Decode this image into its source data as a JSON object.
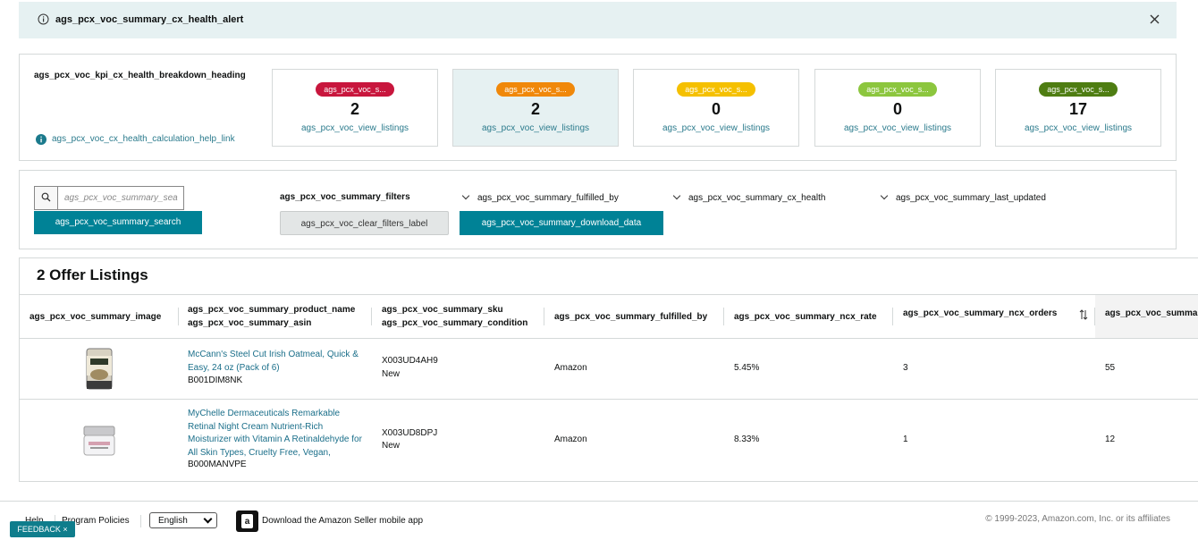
{
  "alert": {
    "message": "ags_pcx_voc_summary_cx_health_alert"
  },
  "kpi": {
    "heading": "ags_pcx_voc_kpi_cx_health_breakdown_heading",
    "help_link": "ags_pcx_voc_cx_health_calculation_help_link",
    "cards": [
      {
        "badge": "ags_pcx_voc_s...",
        "color": "#c8163d",
        "count": 2,
        "link": "ags_pcx_voc_view_listings"
      },
      {
        "badge": "ags_pcx_voc_s...",
        "color": "#f0880a",
        "count": 2,
        "link": "ags_pcx_voc_view_listings"
      },
      {
        "badge": "ags_pcx_voc_s...",
        "color": "#f5c000",
        "count": 0,
        "link": "ags_pcx_voc_view_listings"
      },
      {
        "badge": "ags_pcx_voc_s...",
        "color": "#8cc63e",
        "count": 0,
        "link": "ags_pcx_voc_view_listings"
      },
      {
        "badge": "ags_pcx_voc_s...",
        "color": "#4e7d12",
        "count": 17,
        "link": "ags_pcx_voc_view_listings"
      }
    ]
  },
  "filters": {
    "search_placeholder": "ags_pcx_voc_summary_sea",
    "search_button": "ags_pcx_voc_summary_search",
    "label": "ags_pcx_voc_summary_filters",
    "clear_button": "ags_pcx_voc_clear_filters_label",
    "download_button": "ags_pcx_voc_summary_download_data",
    "dropdowns": [
      "ags_pcx_voc_summary_fulfilled_by",
      "ags_pcx_voc_summary_cx_health",
      "ags_pcx_voc_summary_last_updated"
    ]
  },
  "listings": {
    "title": "2 Offer Listings",
    "columns": [
      [
        "ags_pcx_voc_summary_image"
      ],
      [
        "ags_pcx_voc_summary_product_name",
        "ags_pcx_voc_summary_asin"
      ],
      [
        "ags_pcx_voc_summary_sku",
        "ags_pcx_voc_summary_condition"
      ],
      [
        "ags_pcx_voc_summary_fulfilled_by"
      ],
      [
        "ags_pcx_voc_summary_ncx_rate"
      ],
      [
        "ags_pcx_voc_summary_ncx_orders"
      ],
      [
        "ags_pcx_voc_summa"
      ]
    ],
    "rows": [
      {
        "product_name": "McCann's Steel Cut Irish Oatmeal, Quick & Easy, 24 oz (Pack of 6)",
        "asin": "B001DIM8NK",
        "sku": "X003UD4AH9",
        "condition": "New",
        "fulfilled_by": "Amazon",
        "ncx_rate": "5.45%",
        "ncx_orders": 3,
        "col7": 55
      },
      {
        "product_name": "MyChelle Dermaceuticals Remarkable Retinal Night Cream Nutrient-Rich Moisturizer with Vitamin A Retinaldehyde for All Skin Types, Cruelty Free, Vegan,",
        "asin": "B000MANVPE",
        "sku": "X003UD8DPJ",
        "condition": "New",
        "fulfilled_by": "Amazon",
        "ncx_rate": "8.33%",
        "ncx_orders": 1,
        "col7": 12
      }
    ]
  },
  "footer": {
    "help": "Help",
    "policies": "Program Policies",
    "language": "English",
    "app": "Download the Amazon Seller mobile app",
    "copyright": "© 1999-2023, Amazon.com, Inc. or its affiliates",
    "feedback": "FEEDBACK ×"
  }
}
